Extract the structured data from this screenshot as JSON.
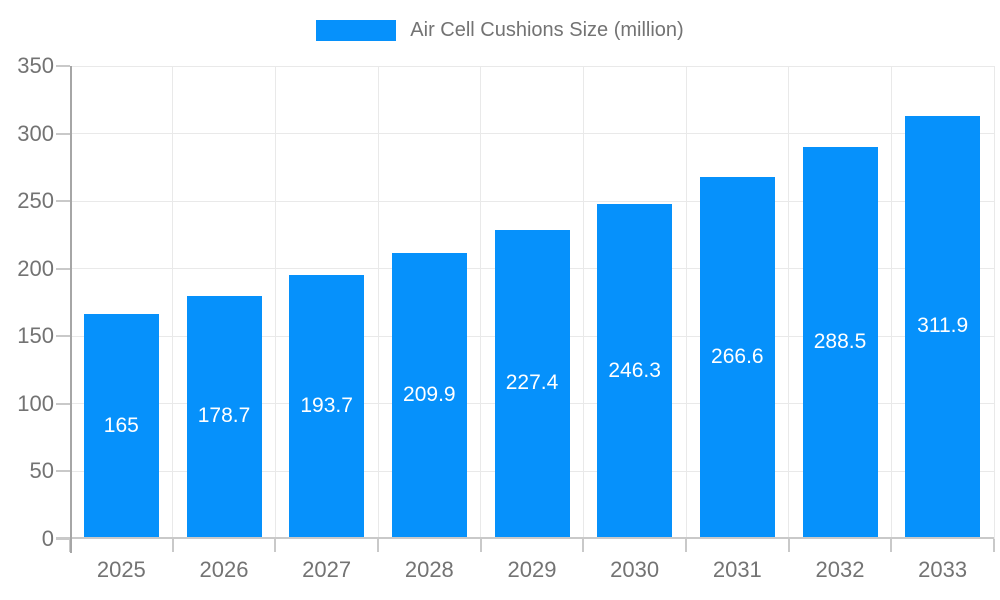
{
  "colors": {
    "bar": "#0691fb",
    "grid": "#e9e9e9",
    "axis": "#a6a6a6",
    "axis_light": "#c9c9c9",
    "text": "#737373",
    "bar_label": "#ffffff",
    "background": "#ffffff"
  },
  "legend": {
    "label": "Air Cell Cushions Size (million)"
  },
  "chart_data": {
    "type": "bar",
    "title": "",
    "legend_entries": [
      "Air Cell Cushions Size (million)"
    ],
    "legend_position": "top",
    "categories": [
      "2025",
      "2026",
      "2027",
      "2028",
      "2029",
      "2030",
      "2031",
      "2032",
      "2033"
    ],
    "values": [
      165,
      178.7,
      193.7,
      209.9,
      227.4,
      246.3,
      266.6,
      288.5,
      311.9
    ],
    "xlabel": "",
    "ylabel": "",
    "ylim": [
      0,
      350
    ],
    "yticks": [
      0,
      50,
      100,
      150,
      200,
      250,
      300,
      350
    ],
    "grid": true,
    "value_labels_inside_bars": true
  }
}
